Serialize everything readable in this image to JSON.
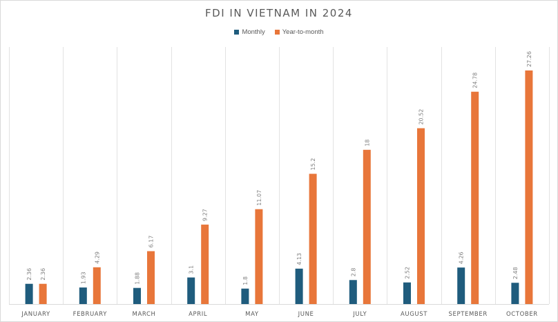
{
  "chart_data": {
    "type": "bar",
    "title": "FDI IN VIETNAM IN 2024",
    "xlabel": "",
    "ylabel": "",
    "ylim": [
      0,
      30
    ],
    "grid": "vertical category separators",
    "legend_position": "top",
    "categories": [
      "JANUARY",
      "FEBRUARY",
      "MARCH",
      "APRIL",
      "MAY",
      "JUNE",
      "JULY",
      "AUGUST",
      "SEPTEMBER",
      "OCTOBER"
    ],
    "series": [
      {
        "name": "Monthly",
        "color": "#1f5c7d",
        "values": [
          2.36,
          1.93,
          1.88,
          3.1,
          1.8,
          4.13,
          2.8,
          2.52,
          4.26,
          2.48
        ],
        "labels": [
          "2.36",
          "1.93",
          "1.88",
          "3.1",
          "1.8",
          "4.13",
          "2.8",
          "2.52",
          "4.26",
          "2.48"
        ]
      },
      {
        "name": "Year-to-month",
        "color": "#e8763a",
        "values": [
          2.36,
          4.29,
          6.17,
          9.27,
          11.07,
          15.2,
          18,
          20.52,
          24.78,
          27.26
        ],
        "labels": [
          "2.36",
          "4.29",
          "6.17",
          "9.27",
          "11.07",
          "15.2",
          "18",
          "20.52",
          "24.78",
          "27.26"
        ]
      }
    ]
  }
}
